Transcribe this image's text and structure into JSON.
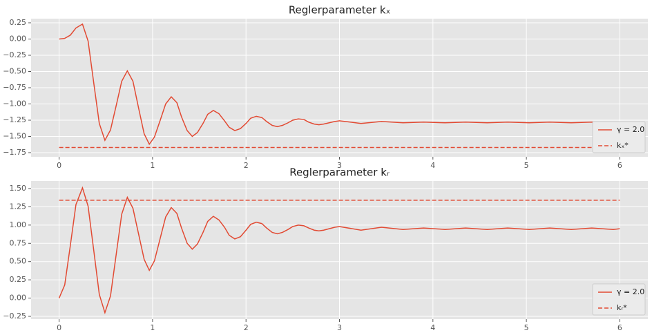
{
  "chart_data": [
    {
      "type": "line",
      "title": "Reglerparameter kₓ",
      "xlim": [
        -0.3,
        6.3
      ],
      "ylim": [
        -1.814,
        0.314
      ],
      "xticks": [
        0,
        1,
        2,
        3,
        4,
        5,
        6
      ],
      "yticks": [
        0.25,
        {
          "value": 0,
          "label": "0.00"
        },
        {
          "value": -0.25,
          "label": "−0.25"
        },
        {
          "value": -0.5,
          "label": "−0.50"
        },
        {
          "value": -0.75,
          "label": "−0.75"
        },
        {
          "value": -1,
          "label": "−1.00"
        },
        {
          "value": -1.25,
          "label": "−1.25"
        },
        {
          "value": -1.5,
          "label": "−1.50"
        },
        {
          "value": -1.75,
          "label": "−1.75"
        }
      ],
      "grid": true,
      "legend": "lower right",
      "series": [
        {
          "name": "γ = 2.0",
          "color": "#E24A33",
          "linestyle": "solid",
          "x": [
            0,
            0.06,
            0.12,
            0.18,
            0.25,
            0.31,
            0.37,
            0.43,
            0.49,
            0.55,
            0.61,
            0.67,
            0.73,
            0.79,
            0.85,
            0.91,
            0.965,
            1.02,
            1.08,
            1.14,
            1.2,
            1.26,
            1.31,
            1.37,
            1.425,
            1.48,
            1.54,
            1.59,
            1.65,
            1.71,
            1.77,
            1.82,
            1.88,
            1.94,
            2.0,
            2.05,
            2.11,
            2.17,
            2.22,
            2.28,
            2.335,
            2.39,
            2.45,
            2.5,
            2.56,
            2.62,
            2.67,
            2.73,
            2.78,
            2.83,
            2.89,
            2.95,
            3.0,
            3.23,
            3.45,
            3.68,
            3.9,
            4.13,
            4.35,
            4.58,
            4.8,
            5.03,
            5.25,
            5.48,
            5.7,
            5.93,
            6.0
          ],
          "values": [
            0,
            0.01,
            0.06,
            0.17,
            0.23,
            -0.03,
            -0.67,
            -1.3,
            -1.56,
            -1.4,
            -1.03,
            -0.65,
            -0.49,
            -0.65,
            -1.06,
            -1.46,
            -1.62,
            -1.51,
            -1.26,
            -1.0,
            -0.89,
            -0.98,
            -1.2,
            -1.41,
            -1.5,
            -1.44,
            -1.3,
            -1.16,
            -1.1,
            -1.15,
            -1.26,
            -1.36,
            -1.41,
            -1.38,
            -1.3,
            -1.22,
            -1.19,
            -1.21,
            -1.27,
            -1.33,
            -1.35,
            -1.33,
            -1.29,
            -1.25,
            -1.23,
            -1.24,
            -1.28,
            -1.31,
            -1.32,
            -1.31,
            -1.29,
            -1.27,
            -1.26,
            -1.3,
            -1.27,
            -1.29,
            -1.28,
            -1.29,
            -1.28,
            -1.29,
            -1.28,
            -1.29,
            -1.28,
            -1.29,
            -1.28,
            -1.29,
            -1.28
          ]
        },
        {
          "name": "kₓ*",
          "color": "#E24A33",
          "linestyle": "dashed",
          "x": [
            0,
            6
          ],
          "values": [
            -1.67,
            -1.67
          ]
        }
      ]
    },
    {
      "type": "line",
      "title": "Reglerparameter kᵣ",
      "xlim": [
        -0.3,
        6.3
      ],
      "ylim": [
        -0.288,
        1.604
      ],
      "xticks": [
        0,
        1,
        2,
        3,
        4,
        5,
        6
      ],
      "yticks": [
        {
          "value": -0.25,
          "label": "−0.25"
        },
        {
          "value": 0,
          "label": "0.00"
        },
        0.25,
        {
          "value": 0.5,
          "label": "0.50"
        },
        0.75,
        {
          "value": 1,
          "label": "1.00"
        },
        1.25,
        {
          "value": 1.5,
          "label": "1.50"
        }
      ],
      "grid": true,
      "legend": "lower right",
      "series": [
        {
          "name": "γ = 2.0",
          "color": "#E24A33",
          "linestyle": "solid",
          "x": [
            0,
            0.06,
            0.12,
            0.18,
            0.25,
            0.31,
            0.37,
            0.43,
            0.49,
            0.55,
            0.61,
            0.67,
            0.73,
            0.79,
            0.85,
            0.91,
            0.965,
            1.02,
            1.08,
            1.14,
            1.2,
            1.26,
            1.31,
            1.37,
            1.425,
            1.48,
            1.54,
            1.59,
            1.65,
            1.71,
            1.77,
            1.82,
            1.88,
            1.94,
            2.0,
            2.05,
            2.11,
            2.17,
            2.22,
            2.28,
            2.335,
            2.39,
            2.45,
            2.5,
            2.56,
            2.62,
            2.67,
            2.73,
            2.78,
            2.83,
            2.89,
            2.95,
            3.0,
            3.23,
            3.45,
            3.68,
            3.9,
            4.13,
            4.35,
            4.58,
            4.8,
            5.03,
            5.25,
            5.48,
            5.7,
            5.93,
            6.0
          ],
          "values": [
            0,
            0.18,
            0.72,
            1.28,
            1.51,
            1.26,
            0.66,
            0.05,
            -0.2,
            0.03,
            0.59,
            1.15,
            1.38,
            1.23,
            0.88,
            0.53,
            0.38,
            0.51,
            0.81,
            1.11,
            1.24,
            1.16,
            0.96,
            0.75,
            0.67,
            0.74,
            0.9,
            1.05,
            1.12,
            1.07,
            0.97,
            0.86,
            0.81,
            0.84,
            0.93,
            1.01,
            1.04,
            1.02,
            0.96,
            0.9,
            0.88,
            0.9,
            0.94,
            0.98,
            1.0,
            0.99,
            0.96,
            0.93,
            0.92,
            0.93,
            0.95,
            0.97,
            0.98,
            0.93,
            0.97,
            0.94,
            0.96,
            0.94,
            0.96,
            0.94,
            0.96,
            0.94,
            0.96,
            0.94,
            0.96,
            0.94,
            0.95
          ]
        },
        {
          "name": "kᵣ*",
          "color": "#E24A33",
          "linestyle": "dashed",
          "x": [
            0,
            6
          ],
          "values": [
            1.34,
            1.34
          ]
        }
      ]
    }
  ]
}
